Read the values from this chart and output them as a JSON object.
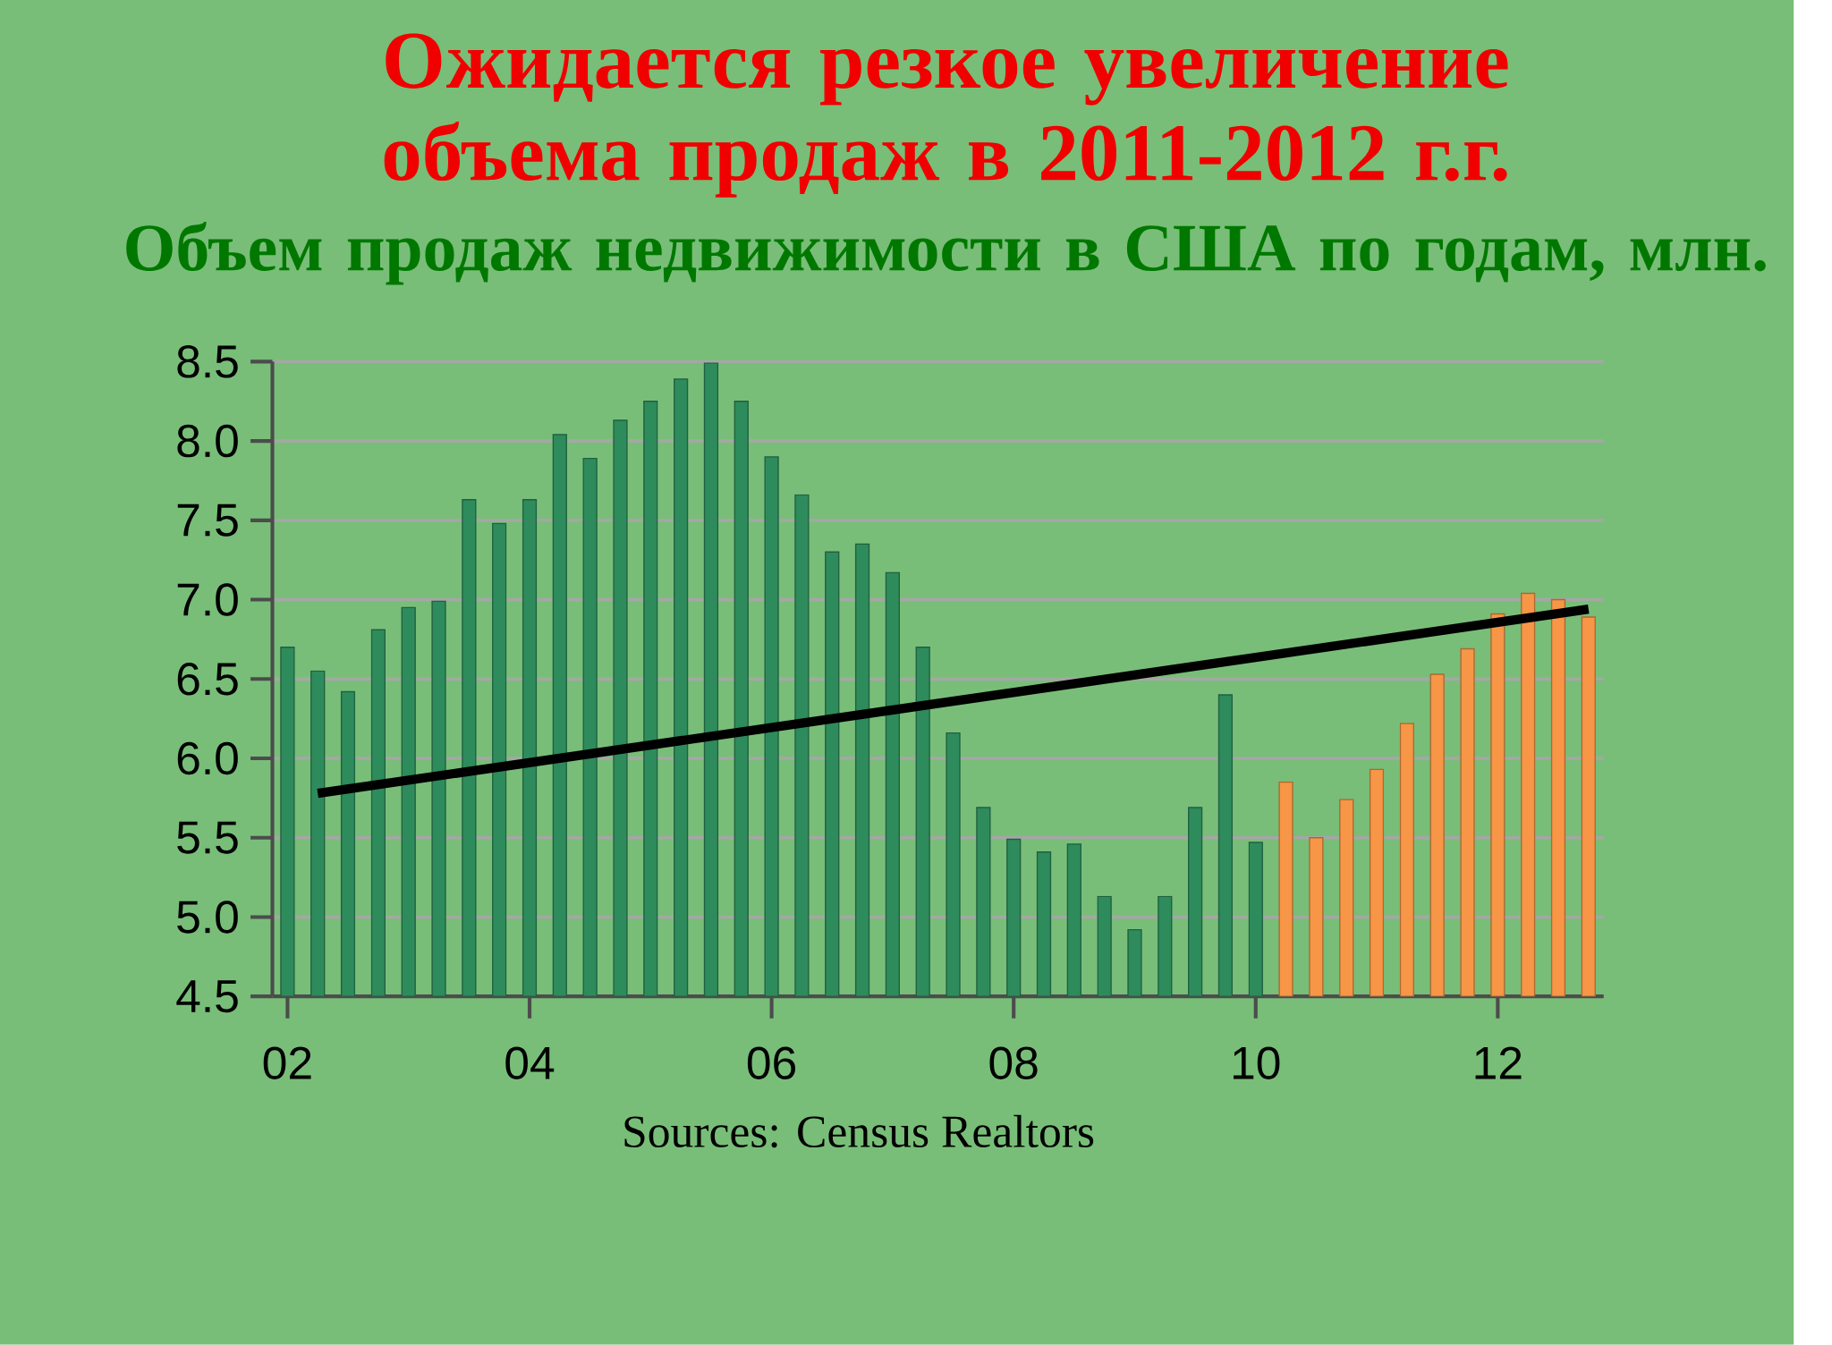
{
  "chart_data": {
    "type": "bar",
    "title": "Ожидается резкое увеличение объема продаж в 2011-2012 г.г.",
    "subtitle": "Объем продаж недвижимости в США по годам, млн.",
    "x": [
      2002,
      2002.25,
      2002.5,
      2002.75,
      2003,
      2003.25,
      2003.5,
      2003.75,
      2004,
      2004.25,
      2004.5,
      2004.75,
      2005,
      2005.25,
      2005.5,
      2005.75,
      2006,
      2006.25,
      2006.5,
      2006.75,
      2007,
      2007.25,
      2007.5,
      2007.75,
      2008,
      2008.25,
      2008.5,
      2008.75,
      2009,
      2009.25,
      2009.5,
      2009.75,
      2010,
      2010.25,
      2010.5,
      2010.75,
      2011,
      2011.25,
      2011.5,
      2011.75,
      2012,
      2012.25,
      2012.5,
      2012.75
    ],
    "xlim": [
      2001.875,
      2012.875
    ],
    "xticks": [
      {
        "value": 2002,
        "label": "02"
      },
      {
        "value": 2004,
        "label": "04"
      },
      {
        "value": 2006,
        "label": "06"
      },
      {
        "value": 2008,
        "label": "08"
      },
      {
        "value": 2010,
        "label": "10"
      },
      {
        "value": 2012,
        "label": "12"
      }
    ],
    "ylim": [
      4.5,
      8.5
    ],
    "yticks": [
      4.5,
      {
        "value": 5,
        "label": "5.0"
      },
      5.5,
      {
        "value": 6,
        "label": "6.0"
      },
      6.5,
      {
        "value": 7,
        "label": "7.0"
      },
      7.5,
      {
        "value": 8,
        "label": "8.0"
      },
      8.5
    ],
    "grid": "y",
    "series": [
      {
        "values": [
          6.7,
          6.55,
          6.42,
          6.81,
          6.95,
          6.99,
          7.63,
          7.48,
          7.63,
          8.04,
          7.89,
          8.13,
          8.25,
          8.39,
          8.49,
          8.25,
          7.9,
          7.66,
          7.3,
          7.35,
          7.17,
          6.7,
          6.16,
          5.69,
          5.49,
          5.41,
          5.46,
          5.13,
          4.92,
          5.13,
          5.69,
          6.4,
          5.47,
          5.85,
          5.5,
          5.74,
          5.93,
          6.22,
          6.53,
          6.69,
          6.91,
          7.04,
          7.0,
          6.89
        ],
        "colors": [
          "#2e8b5c",
          "#2e8b5c",
          "#2e8b5c",
          "#2e8b5c",
          "#2e8b5c",
          "#2e8b5c",
          "#2e8b5c",
          "#2e8b5c",
          "#2e8b5c",
          "#2e8b5c",
          "#2e8b5c",
          "#2e8b5c",
          "#2e8b5c",
          "#2e8b5c",
          "#2e8b5c",
          "#2e8b5c",
          "#2e8b5c",
          "#2e8b5c",
          "#2e8b5c",
          "#2e8b5c",
          "#2e8b5c",
          "#2e8b5c",
          "#2e8b5c",
          "#2e8b5c",
          "#2e8b5c",
          "#2e8b5c",
          "#2e8b5c",
          "#2e8b5c",
          "#2e8b5c",
          "#2e8b5c",
          "#2e8b5c",
          "#2e8b5c",
          "#2e8b5c",
          "#f79646",
          "#f79646",
          "#f79646",
          "#f79646",
          "#f79646",
          "#f79646",
          "#f79646",
          "#f79646",
          "#f79646",
          "#f79646",
          "#f79646"
        ]
      },
      {
        "type": "line",
        "x": [
          2002.25,
          2012.75
        ],
        "values": [
          5.78,
          6.94
        ],
        "color": "#000000"
      }
    ],
    "annotations": [
      "Sources: Census Realtors"
    ]
  }
}
